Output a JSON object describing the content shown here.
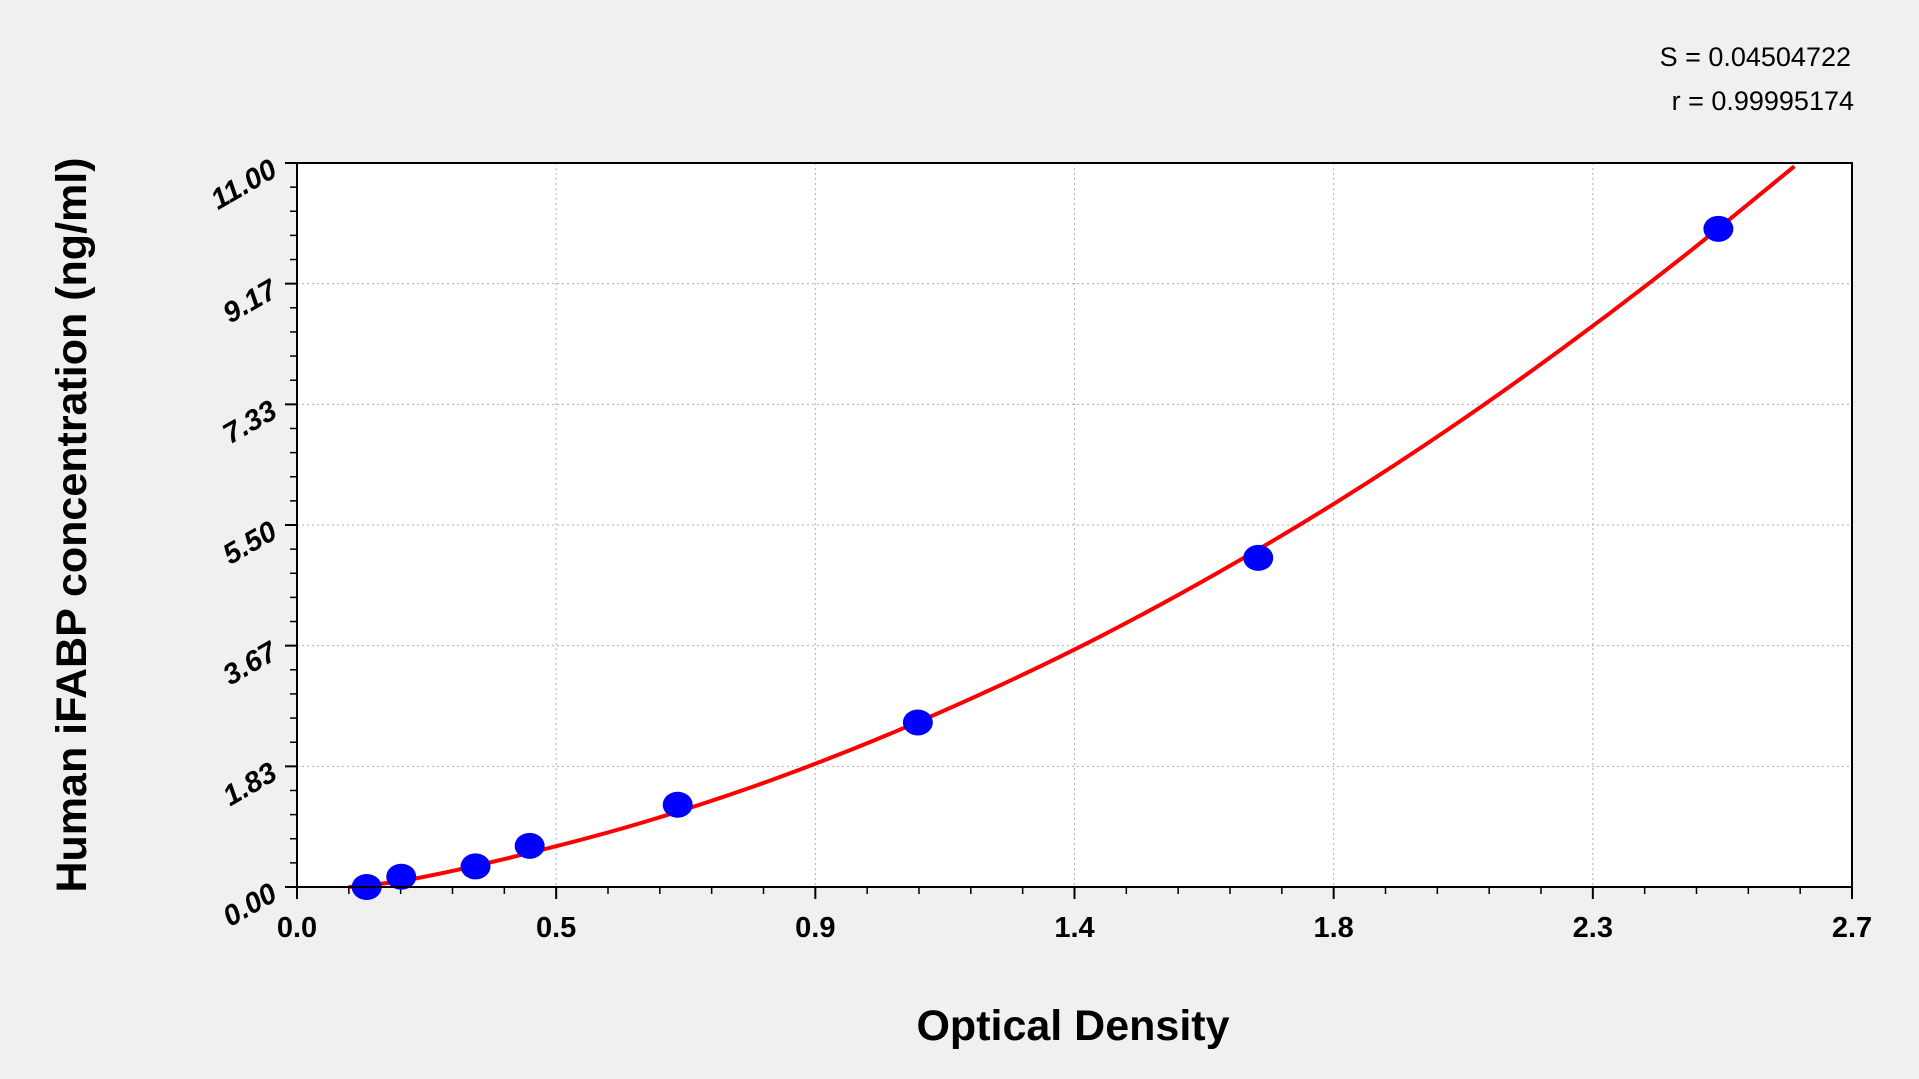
{
  "chart_data": {
    "type": "scatter",
    "title": "",
    "xlabel": "Optical Density",
    "ylabel": "Human iFABP concentration (ng/ml)",
    "xlim": [
      0.0,
      2.7
    ],
    "ylim": [
      0.0,
      11.0
    ],
    "x_ticks": [
      0.0,
      0.45,
      0.9,
      1.35,
      1.8,
      2.25,
      2.7
    ],
    "x_tick_labels": [
      "0.0",
      "0.5",
      "0.9",
      "1.4",
      "1.8",
      "2.3",
      "2.7"
    ],
    "y_ticks": [
      0.0,
      1.833,
      3.667,
      5.5,
      7.333,
      9.167,
      11.0
    ],
    "y_tick_labels": [
      "0.00",
      "1.83",
      "3.67",
      "5.50",
      "7.33",
      "9.17",
      "11.00"
    ],
    "grid": true,
    "annotations": {
      "s": "S = 0.04504722",
      "r": "r = 0.99995174"
    },
    "colors": {
      "points": "#0000ff",
      "curve": "#ff0000",
      "background": "#f0f0f0",
      "plot": "#ffffff"
    },
    "points": {
      "x": [
        0.121,
        0.181,
        0.31,
        0.404,
        0.661,
        1.078,
        1.669,
        2.468
      ],
      "y": [
        0.0,
        0.156,
        0.3125,
        0.625,
        1.25,
        2.5,
        5.0,
        10.0
      ]
    },
    "fit_curve": {
      "x": [
        0.09,
        0.2,
        0.4,
        0.6,
        0.8,
        1.0,
        1.2,
        1.4,
        1.6,
        1.8,
        2.0,
        2.2,
        2.4,
        2.6
      ],
      "y": [
        0.0,
        0.12,
        0.51,
        0.98,
        1.55,
        2.22,
        2.98,
        3.83,
        4.78,
        5.82,
        6.96,
        8.2,
        9.53,
        10.95
      ]
    }
  }
}
